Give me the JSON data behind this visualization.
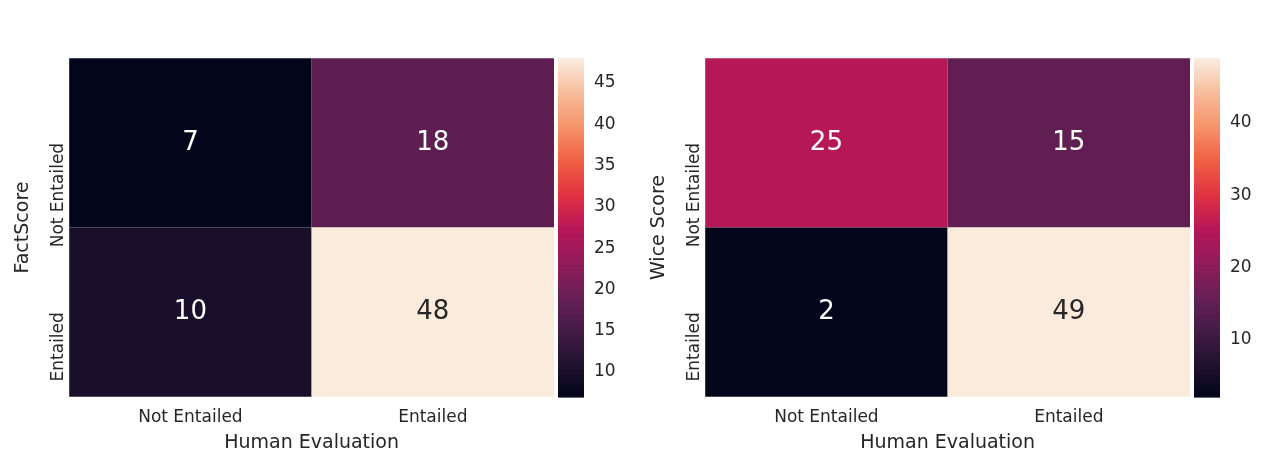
{
  "chart_data": [
    {
      "type": "heatmap",
      "xlabel": "Human Evaluation",
      "ylabel": "FactScore",
      "categories": [
        "Not Entailed",
        "Entailed"
      ],
      "y_categories": [
        "Not Entailed",
        "Entailed"
      ],
      "cells": [
        [
          7,
          18
        ],
        [
          10,
          48
        ]
      ],
      "data_labels": true,
      "clim": [
        7,
        48
      ],
      "cticks": [
        10,
        15,
        20,
        25,
        30,
        35,
        40,
        45
      ]
    },
    {
      "type": "heatmap",
      "xlabel": "Human Evaluation",
      "ylabel": "Wice Score",
      "categories": [
        "Not Entailed",
        "Entailed"
      ],
      "y_categories": [
        "Not Entailed",
        "Entailed"
      ],
      "cells": [
        [
          25,
          15
        ],
        [
          2,
          49
        ]
      ],
      "data_labels": true,
      "clim": [
        2,
        49
      ],
      "cticks": [
        10,
        20,
        30,
        40
      ]
    }
  ]
}
